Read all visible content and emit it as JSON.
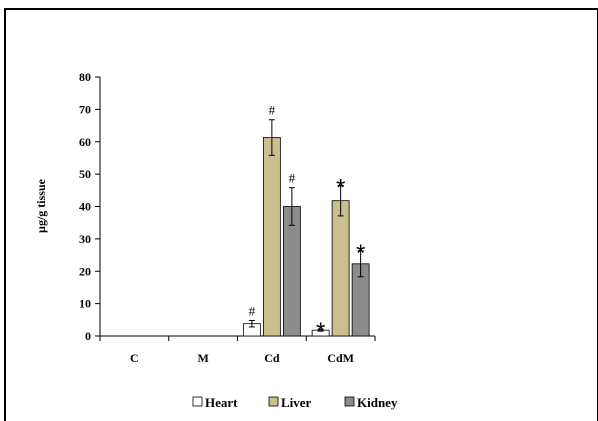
{
  "chart_data": {
    "type": "bar",
    "categories": [
      "C",
      "M",
      "Cd",
      "CdM"
    ],
    "series": [
      {
        "name": "Heart",
        "values": [
          0,
          0,
          3.8,
          1.8
        ],
        "errors": [
          0,
          0,
          1.0,
          0.3
        ],
        "color": "#ffffff"
      },
      {
        "name": "Liver",
        "values": [
          0,
          0,
          61.3,
          41.8
        ],
        "errors": [
          0,
          0,
          5.5,
          4.7
        ],
        "color": "#c9bf8f"
      },
      {
        "name": "Kidney",
        "values": [
          0,
          0,
          40.0,
          22.3
        ],
        "errors": [
          0,
          0,
          5.8,
          4.0
        ],
        "color": "#8c8c8c"
      }
    ],
    "annotations": [
      {
        "category": "Cd",
        "series": "Heart",
        "mark": "#"
      },
      {
        "category": "Cd",
        "series": "Liver",
        "mark": "#"
      },
      {
        "category": "Cd",
        "series": "Kidney",
        "mark": "#"
      },
      {
        "category": "CdM",
        "series": "Heart",
        "mark": "*"
      },
      {
        "category": "CdM",
        "series": "Liver",
        "mark": "*"
      },
      {
        "category": "CdM",
        "series": "Kidney",
        "mark": "*"
      }
    ],
    "title": "",
    "xlabel": "",
    "ylabel": "µg/g tissue",
    "ylim": [
      0,
      80
    ],
    "yticks": [
      0,
      10,
      20,
      30,
      40,
      50,
      60,
      70,
      80
    ],
    "grid": false,
    "legend_position": "bottom"
  }
}
